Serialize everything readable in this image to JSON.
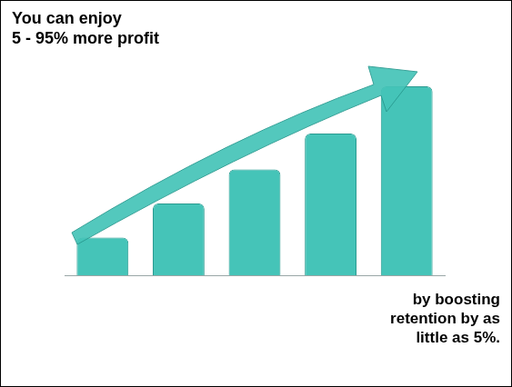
{
  "chart_data": {
    "type": "bar",
    "annotations": [
      [
        "You can enjoy",
        "5 - 95% more profit"
      ],
      [
        "by boosting",
        "retention by as",
        "little as 5%."
      ]
    ],
    "categories": [
      null,
      null,
      null,
      null,
      null
    ],
    "values": [
      20,
      38,
      56,
      75,
      100
    ],
    "color": "#45c4b8",
    "ylim": [
      0,
      100
    ],
    "grid": false,
    "tick_labels": false
  }
}
